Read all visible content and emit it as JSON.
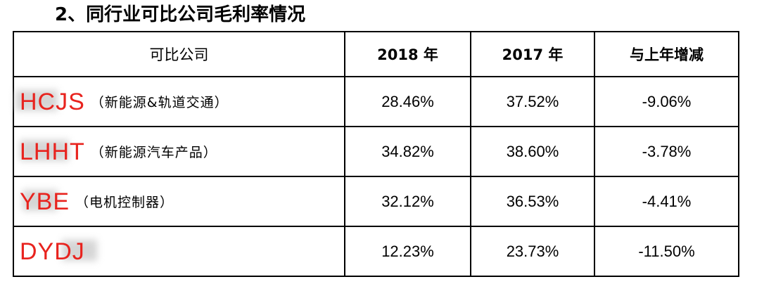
{
  "heading": "2、同行业可比公司毛利率情况",
  "table": {
    "headers": [
      "可比公司",
      "2018 年",
      "2017 年",
      "与上年增减"
    ],
    "rows": [
      {
        "code": "HCJS",
        "desc": "（新能源&轨道交通）",
        "v2018": "28.46%",
        "v2017": "37.52%",
        "change": "-9.06%"
      },
      {
        "code": "LHHT",
        "desc": "（新能源汽车产品）",
        "v2018": "34.82%",
        "v2017": "38.60%",
        "change": "-3.78%"
      },
      {
        "code": "YBE",
        "desc": "（电机控制器）",
        "v2018": "32.12%",
        "v2017": "36.53%",
        "change": "-4.41%"
      },
      {
        "code": "DYDJ",
        "desc": "",
        "v2018": "12.23%",
        "v2017": "23.73%",
        "change": "-11.50%"
      }
    ]
  },
  "colors": {
    "code_red": "#e8231e",
    "border": "#000000"
  }
}
